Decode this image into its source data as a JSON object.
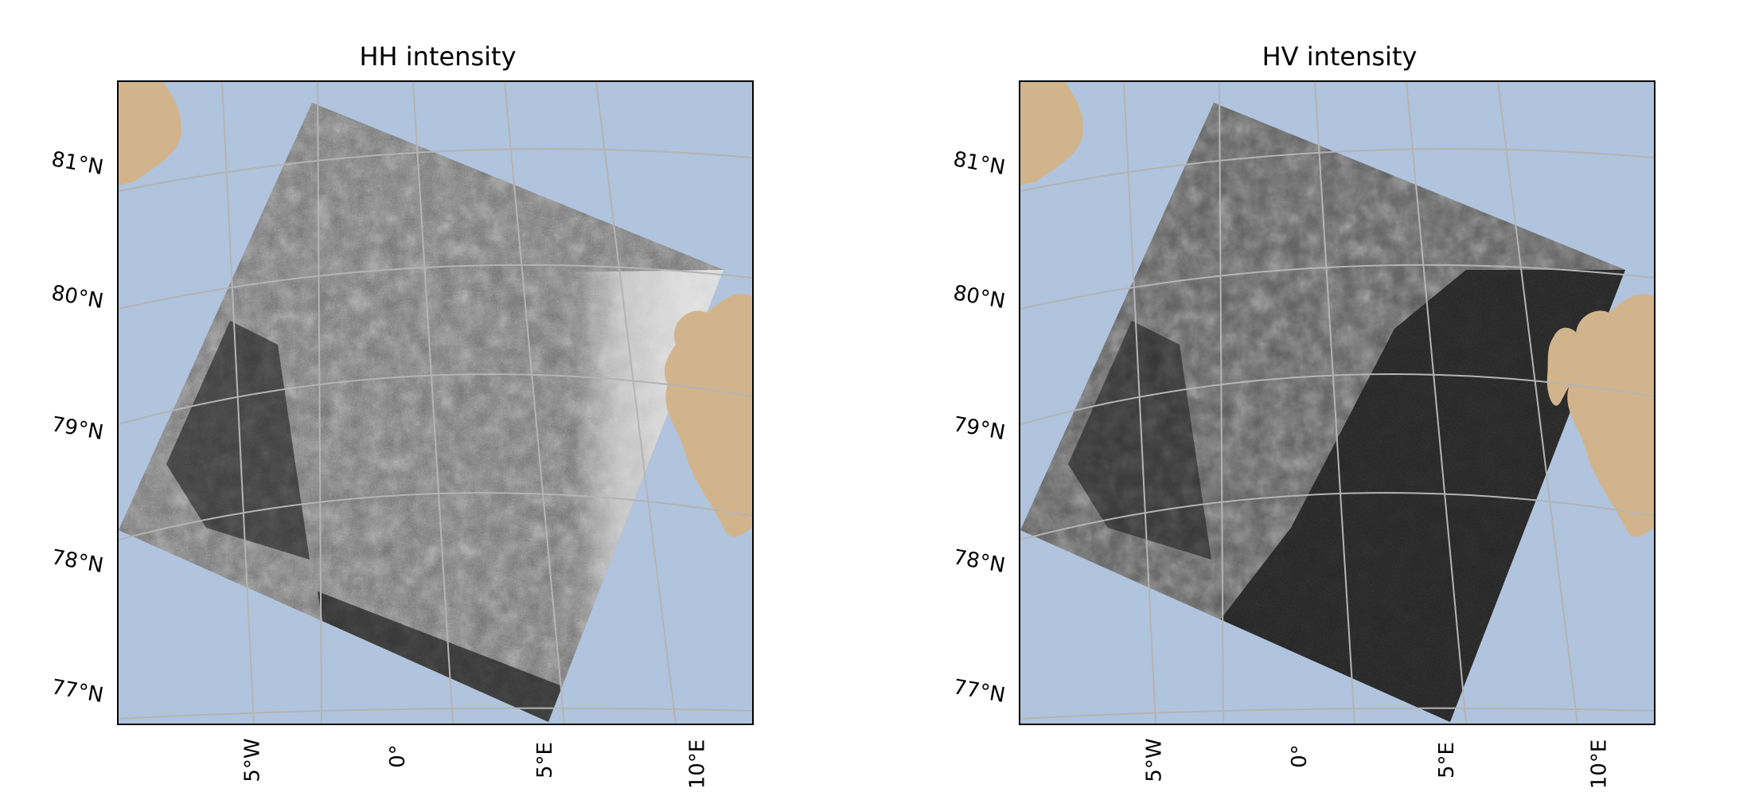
{
  "panels": [
    {
      "title": "HH intensity",
      "polarization": "HH",
      "swath_tone": "bright-wide",
      "lat_labels": [
        "81°N",
        "80°N",
        "79°N",
        "78°N",
        "77°N"
      ],
      "lon_labels": [
        "5°W",
        "0°",
        "5°E",
        "10°E"
      ]
    },
    {
      "title": "HV intensity",
      "polarization": "HV",
      "swath_tone": "dark-noise",
      "lat_labels": [
        "81°N",
        "80°N",
        "79°N",
        "78°N",
        "77°N"
      ],
      "lon_labels": [
        "5°W",
        "0°",
        "5°E",
        "10°E"
      ]
    }
  ],
  "colors": {
    "ocean": "#b0c4de",
    "land": "#d2b48c",
    "graticule": "#b4b4b4",
    "frame": "#000000"
  }
}
